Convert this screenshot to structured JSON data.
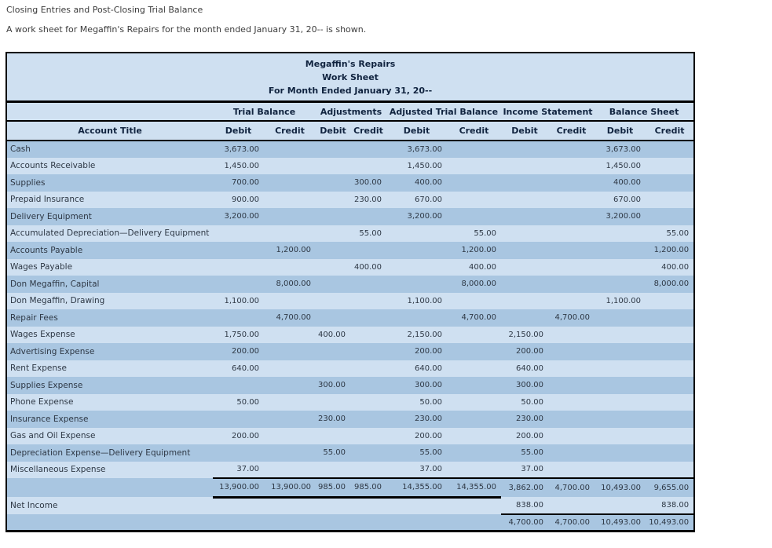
{
  "page": {
    "heading": "Closing Entries and Post-Closing Trial Balance",
    "description": "A work sheet for Megaffin's Repairs for the month ended January 31, 20-- is shown."
  },
  "colors": {
    "row_dark": "#a9c6e1",
    "row_light": "#cfe0f1",
    "border": "#000000",
    "header_text": "#10233f"
  },
  "worksheet": {
    "title_lines": [
      "Megaffin's Repairs",
      "Work Sheet",
      "For Month Ended January 31, 20--"
    ],
    "column_groups": [
      "Trial Balance",
      "Adjustments",
      "Adjusted Trial Balance",
      "Income Statement",
      "Balance Sheet"
    ],
    "account_title_header": "Account Title",
    "debit_label": "Debit",
    "credit_label": "Credit",
    "rows": [
      {
        "account": "Cash",
        "values": [
          "3,673.00",
          "",
          "",
          "",
          "3,673.00",
          "",
          "",
          "",
          "3,673.00",
          ""
        ]
      },
      {
        "account": "Accounts Receivable",
        "values": [
          "1,450.00",
          "",
          "",
          "",
          "1,450.00",
          "",
          "",
          "",
          "1,450.00",
          ""
        ]
      },
      {
        "account": "Supplies",
        "values": [
          "700.00",
          "",
          "",
          "300.00",
          "400.00",
          "",
          "",
          "",
          "400.00",
          ""
        ]
      },
      {
        "account": "Prepaid Insurance",
        "values": [
          "900.00",
          "",
          "",
          "230.00",
          "670.00",
          "",
          "",
          "",
          "670.00",
          ""
        ]
      },
      {
        "account": "Delivery Equipment",
        "values": [
          "3,200.00",
          "",
          "",
          "",
          "3,200.00",
          "",
          "",
          "",
          "3,200.00",
          ""
        ]
      },
      {
        "account": "Accumulated Depreciation—Delivery Equipment",
        "values": [
          "",
          "",
          "",
          "55.00",
          "",
          "55.00",
          "",
          "",
          "",
          "55.00"
        ]
      },
      {
        "account": "Accounts Payable",
        "values": [
          "",
          "1,200.00",
          "",
          "",
          "",
          "1,200.00",
          "",
          "",
          "",
          "1,200.00"
        ]
      },
      {
        "account": "Wages Payable",
        "values": [
          "",
          "",
          "",
          "400.00",
          "",
          "400.00",
          "",
          "",
          "",
          "400.00"
        ]
      },
      {
        "account": "Don Megaffin, Capital",
        "values": [
          "",
          "8,000.00",
          "",
          "",
          "",
          "8,000.00",
          "",
          "",
          "",
          "8,000.00"
        ]
      },
      {
        "account": "Don Megaffin, Drawing",
        "values": [
          "1,100.00",
          "",
          "",
          "",
          "1,100.00",
          "",
          "",
          "",
          "1,100.00",
          ""
        ]
      },
      {
        "account": "Repair Fees",
        "values": [
          "",
          "4,700.00",
          "",
          "",
          "",
          "4,700.00",
          "",
          "4,700.00",
          "",
          ""
        ]
      },
      {
        "account": "Wages Expense",
        "values": [
          "1,750.00",
          "",
          "400.00",
          "",
          "2,150.00",
          "",
          "2,150.00",
          "",
          "",
          ""
        ]
      },
      {
        "account": "Advertising Expense",
        "values": [
          "200.00",
          "",
          "",
          "",
          "200.00",
          "",
          "200.00",
          "",
          "",
          ""
        ]
      },
      {
        "account": "Rent Expense",
        "values": [
          "640.00",
          "",
          "",
          "",
          "640.00",
          "",
          "640.00",
          "",
          "",
          ""
        ]
      },
      {
        "account": "Supplies Expense",
        "values": [
          "",
          "",
          "300.00",
          "",
          "300.00",
          "",
          "300.00",
          "",
          "",
          ""
        ]
      },
      {
        "account": "Phone Expense",
        "values": [
          "50.00",
          "",
          "",
          "",
          "50.00",
          "",
          "50.00",
          "",
          "",
          ""
        ]
      },
      {
        "account": "Insurance Expense",
        "values": [
          "",
          "",
          "230.00",
          "",
          "230.00",
          "",
          "230.00",
          "",
          "",
          ""
        ]
      },
      {
        "account": "Gas and Oil Expense",
        "values": [
          "200.00",
          "",
          "",
          "",
          "200.00",
          "",
          "200.00",
          "",
          "",
          ""
        ]
      },
      {
        "account": "Depreciation Expense—Delivery Equipment",
        "values": [
          "",
          "",
          "55.00",
          "",
          "55.00",
          "",
          "55.00",
          "",
          "",
          ""
        ]
      },
      {
        "account": "Miscellaneous Expense",
        "values": [
          "37.00",
          "",
          "",
          "",
          "37.00",
          "",
          "37.00",
          "",
          "",
          ""
        ]
      }
    ],
    "totals_row": {
      "account": "",
      "values": [
        "13,900.00",
        "13,900.00",
        "985.00",
        "985.00",
        "14,355.00",
        "14,355.00",
        "3,862.00",
        "4,700.00",
        "10,493.00",
        "9,655.00"
      ]
    },
    "net_income_row": {
      "account": "Net Income",
      "values": [
        "",
        "",
        "",
        "",
        "",
        "",
        "838.00",
        "",
        "",
        "838.00"
      ]
    },
    "final_totals_row": {
      "account": "",
      "values": [
        "",
        "",
        "",
        "",
        "",
        "",
        "4,700.00",
        "4,700.00",
        "10,493.00",
        "10,493.00"
      ]
    }
  }
}
